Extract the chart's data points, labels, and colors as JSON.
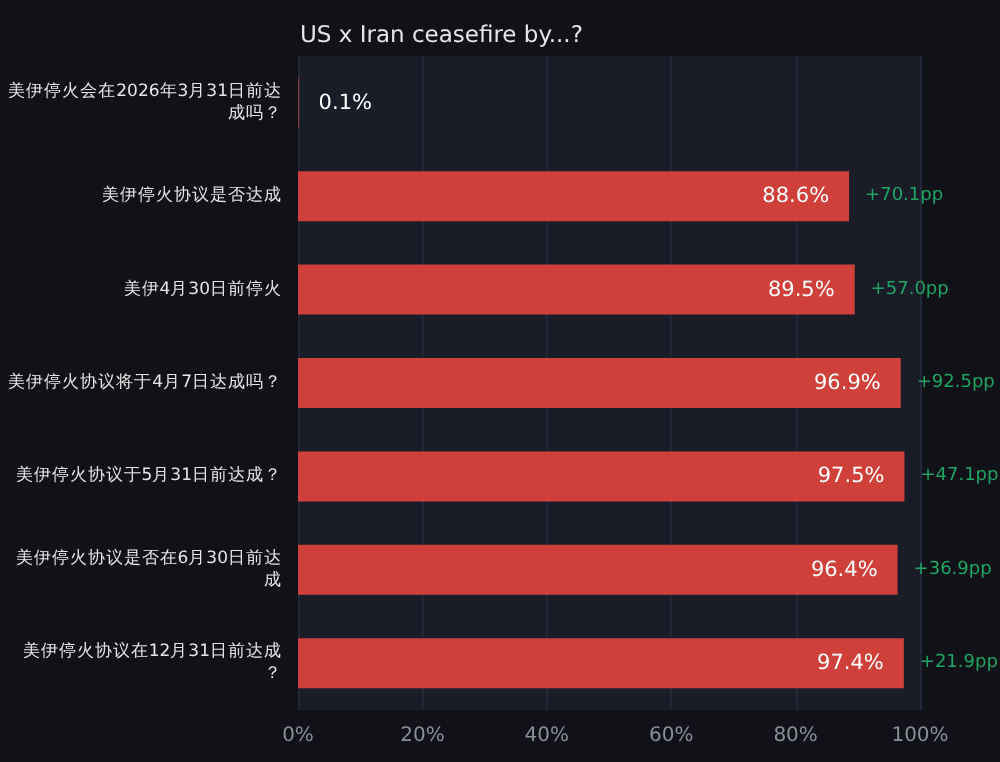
{
  "chart_data": {
    "type": "bar",
    "orientation": "horizontal",
    "title": "US x Iran ceasefire by...?",
    "categories": [
      "美伊停火会在2026年3月31日前达成吗？",
      "美伊停火协议是否达成",
      "美伊4月30日前停火",
      "美伊停火协议将于4月7日达成吗？",
      "美伊停火协议于5月31日前达成？",
      "美伊停火协议是否在6月30日前达成",
      "美伊停火协议在12月31日前达成？"
    ],
    "values": [
      0.1,
      88.6,
      89.5,
      96.9,
      97.5,
      96.4,
      97.4
    ],
    "value_labels": [
      "0.1%",
      "88.6%",
      "89.5%",
      "96.9%",
      "97.5%",
      "96.4%",
      "97.4%"
    ],
    "color": "#d0403a",
    "xlim": [
      0,
      100
    ],
    "xticks": [
      {
        "value": 0,
        "label": "0%"
      },
      {
        "value": 20,
        "label": "20%"
      },
      {
        "value": 40,
        "label": "40%"
      },
      {
        "value": 60,
        "label": "60%"
      },
      {
        "value": 80,
        "label": "80%"
      },
      {
        "value": 100,
        "label": "100%"
      }
    ],
    "grid": "x",
    "annotations": [
      {
        "text": "+70.1pp",
        "x": 88.6,
        "y": "美伊停火协议是否达成"
      },
      {
        "text": "+57.0pp",
        "x": 89.5,
        "y": "美伊4月30日前停火"
      },
      {
        "text": "+92.5pp",
        "x": 96.9,
        "y": "美伊停火协议将于4月7日达成吗？"
      },
      {
        "text": "+47.1pp",
        "x": 97.5,
        "y": "美伊停火协议于5月31日前达成？"
      },
      {
        "text": "+36.9pp",
        "x": 96.4,
        "y": "美伊停火协议是否在6月30日前达成"
      },
      {
        "text": "+21.9pp",
        "x": 97.4,
        "y": "美伊停火协议在12月31日前达成？"
      }
    ]
  }
}
